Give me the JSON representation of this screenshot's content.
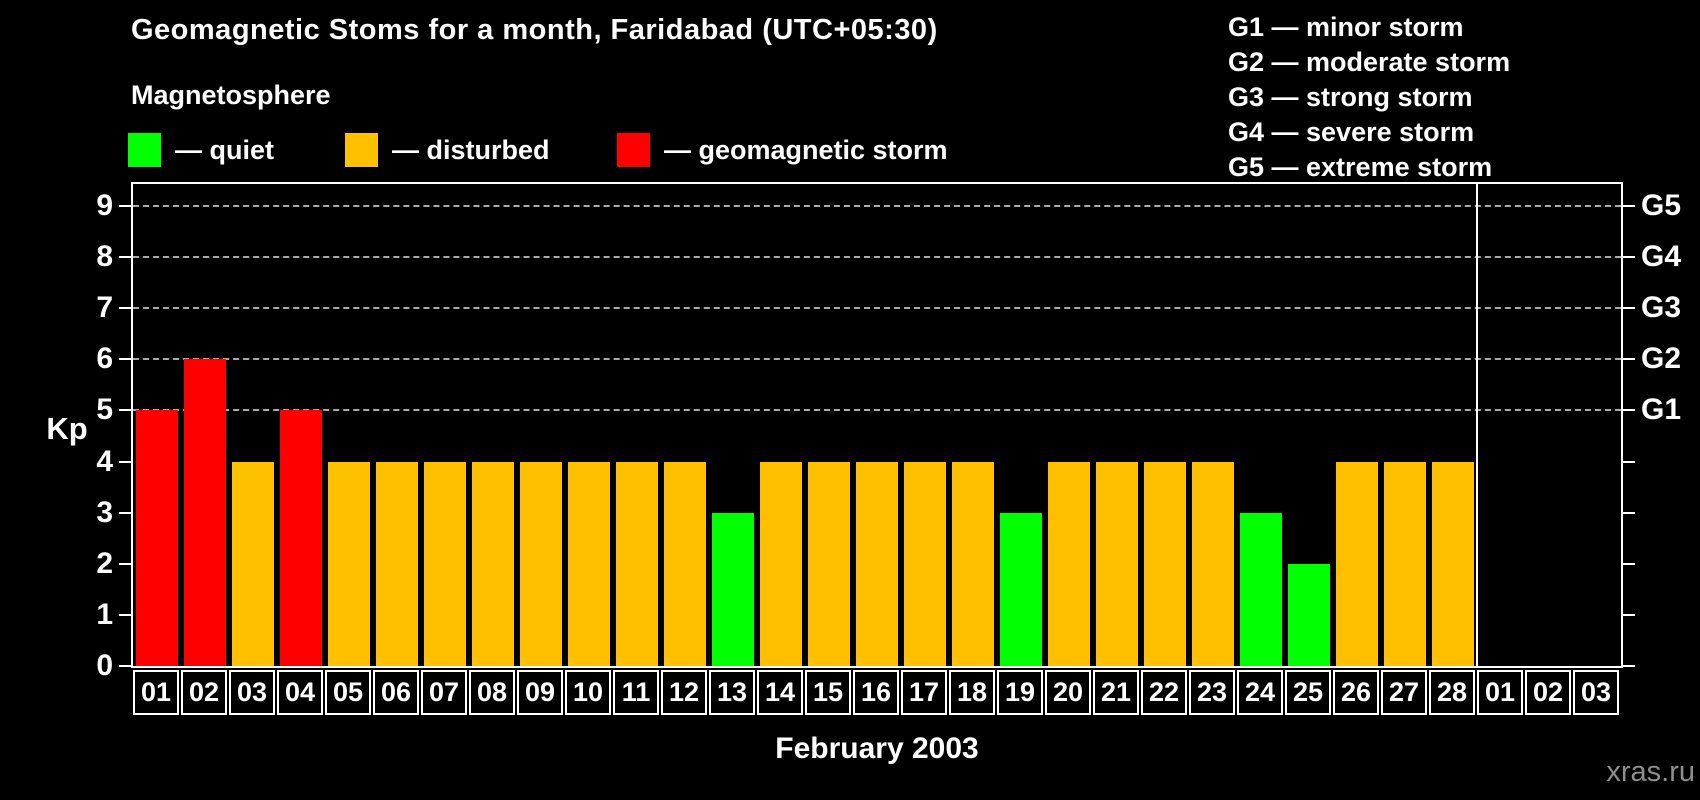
{
  "title": "Geomagnetic Stoms for a month, Faridabad (UTC+05:30)",
  "watermark": "xras.ru",
  "legend": {
    "heading": "Magnetosphere",
    "items": [
      {
        "name": "quiet",
        "label": "— quiet",
        "color": "#00ff00"
      },
      {
        "name": "disturbed",
        "label": "— disturbed",
        "color": "#ffc000"
      },
      {
        "name": "geomagnetic-storm",
        "label": "— geomagnetic storm",
        "color": "#ff0000"
      }
    ]
  },
  "storm_scale_legend": [
    "G1 — minor storm",
    "G2 — moderate storm",
    "G3 — strong storm",
    "G4 — severe storm",
    "G5 — extreme storm"
  ],
  "colors": {
    "background": "#000000",
    "quiet": "#00ff00",
    "disturbed": "#ffc000",
    "storm": "#ff0000",
    "axis": "#ffffff",
    "gridline": "#aaaaaa",
    "watermark": "#8e8e8e"
  },
  "chart_data": {
    "type": "bar",
    "title": "Geomagnetic Stoms for a month, Faridabad (UTC+05:30)",
    "xlabel": "February 2003",
    "ylabel": "Kp",
    "ylim": [
      0,
      9.4
    ],
    "yticks": [
      0,
      1,
      2,
      3,
      4,
      5,
      6,
      7,
      8,
      9
    ],
    "gridlines_at": [
      5,
      6,
      7,
      8,
      9
    ],
    "grid": "dashed horizontal at storm levels only",
    "legend_position": "top",
    "right_axis_labels": [
      {
        "value": 5,
        "label": "G1"
      },
      {
        "value": 6,
        "label": "G2"
      },
      {
        "value": 7,
        "label": "G3"
      },
      {
        "value": 8,
        "label": "G4"
      },
      {
        "value": 9,
        "label": "G5"
      }
    ],
    "categories": [
      "01",
      "02",
      "03",
      "04",
      "05",
      "06",
      "07",
      "08",
      "09",
      "10",
      "11",
      "12",
      "13",
      "14",
      "15",
      "16",
      "17",
      "18",
      "19",
      "20",
      "21",
      "22",
      "23",
      "24",
      "25",
      "26",
      "27",
      "28",
      "01",
      "02",
      "03"
    ],
    "values": [
      5,
      6,
      4,
      5,
      4,
      4,
      4,
      4,
      4,
      4,
      4,
      4,
      3,
      4,
      4,
      4,
      4,
      4,
      3,
      4,
      4,
      4,
      4,
      3,
      2,
      4,
      4,
      4,
      null,
      null,
      null
    ],
    "statuses": [
      "storm",
      "storm",
      "disturbed",
      "storm",
      "disturbed",
      "disturbed",
      "disturbed",
      "disturbed",
      "disturbed",
      "disturbed",
      "disturbed",
      "disturbed",
      "quiet",
      "disturbed",
      "disturbed",
      "disturbed",
      "disturbed",
      "disturbed",
      "quiet",
      "disturbed",
      "disturbed",
      "disturbed",
      "disturbed",
      "quiet",
      "quiet",
      "disturbed",
      "disturbed",
      "disturbed",
      null,
      null,
      null
    ],
    "month_separator_after_index": 27
  }
}
